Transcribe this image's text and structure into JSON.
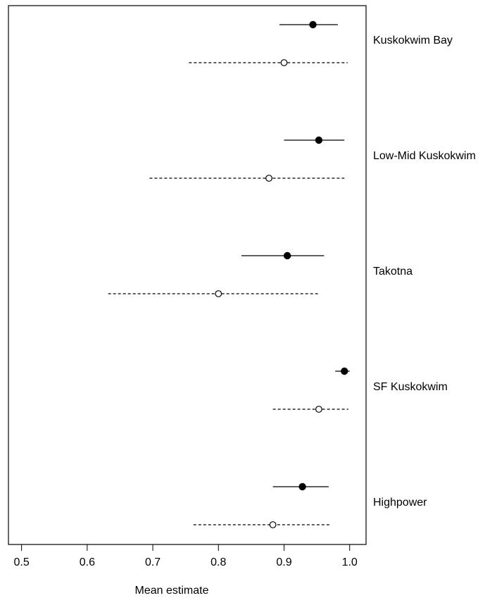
{
  "chart_data": {
    "type": "forest",
    "xlabel": "Mean estimate",
    "xlim": [
      0.48,
      1.025
    ],
    "xticks": [
      0.5,
      0.6,
      0.7,
      0.8,
      0.9,
      1.0
    ],
    "xtick_labels": [
      "0.5",
      "0.6",
      "0.7",
      "0.8",
      "0.9",
      "1.0"
    ],
    "series": [
      {
        "marker": "filled-circle",
        "line": "solid"
      },
      {
        "marker": "open-circle",
        "line": "dashed"
      }
    ],
    "groups": [
      {
        "label": "Kuskokwim Bay",
        "estimates": [
          {
            "series": 0,
            "mean": 0.944,
            "lower": 0.893,
            "upper": 0.982
          },
          {
            "series": 1,
            "mean": 0.9,
            "lower": 0.755,
            "upper": 0.997
          }
        ]
      },
      {
        "label": "Low-Mid Kuskokwim",
        "estimates": [
          {
            "series": 0,
            "mean": 0.953,
            "lower": 0.9,
            "upper": 0.992
          },
          {
            "series": 1,
            "mean": 0.877,
            "lower": 0.695,
            "upper": 0.992
          }
        ]
      },
      {
        "label": "Takotna",
        "estimates": [
          {
            "series": 0,
            "mean": 0.905,
            "lower": 0.835,
            "upper": 0.961
          },
          {
            "series": 1,
            "mean": 0.8,
            "lower": 0.632,
            "upper": 0.953
          }
        ]
      },
      {
        "label": "SF Kuskokwim",
        "estimates": [
          {
            "series": 0,
            "mean": 0.992,
            "lower": 0.978,
            "upper": 1.0
          },
          {
            "series": 1,
            "mean": 0.953,
            "lower": 0.883,
            "upper": 0.998
          }
        ]
      },
      {
        "label": "Highpower",
        "estimates": [
          {
            "series": 0,
            "mean": 0.928,
            "lower": 0.883,
            "upper": 0.968
          },
          {
            "series": 1,
            "mean": 0.883,
            "lower": 0.762,
            "upper": 0.97
          }
        ]
      }
    ]
  }
}
